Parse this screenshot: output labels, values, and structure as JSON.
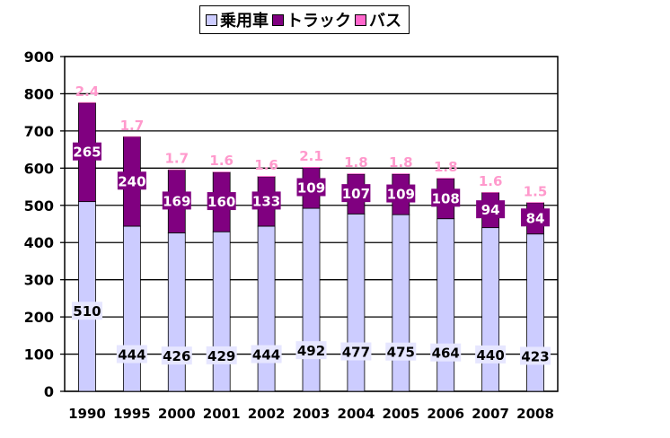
{
  "chart_data": {
    "type": "bar",
    "stacked": true,
    "categories": [
      "1990",
      "1995",
      "2000",
      "2001",
      "2002",
      "2003",
      "2004",
      "2005",
      "2006",
      "2007",
      "2008"
    ],
    "series": [
      {
        "name": "乗用車",
        "color": "#ccccff",
        "values": [
          510,
          444,
          426,
          429,
          444,
          492,
          477,
          475,
          464,
          440,
          423
        ]
      },
      {
        "name": "トラック",
        "color": "#800080",
        "values": [
          265,
          240,
          169,
          160,
          133,
          109,
          107,
          109,
          108,
          94,
          84
        ]
      },
      {
        "name": "バス",
        "color": "#ff66cc",
        "values": [
          2.4,
          1.7,
          1.7,
          1.6,
          1.6,
          2.1,
          1.8,
          1.8,
          1.8,
          1.6,
          1.5
        ]
      }
    ],
    "y_ticks": [
      "0",
      "100",
      "200",
      "300",
      "400",
      "500",
      "600",
      "700",
      "800",
      "900"
    ],
    "ylim": [
      0,
      900
    ],
    "grid": true,
    "legend_position": "top"
  }
}
